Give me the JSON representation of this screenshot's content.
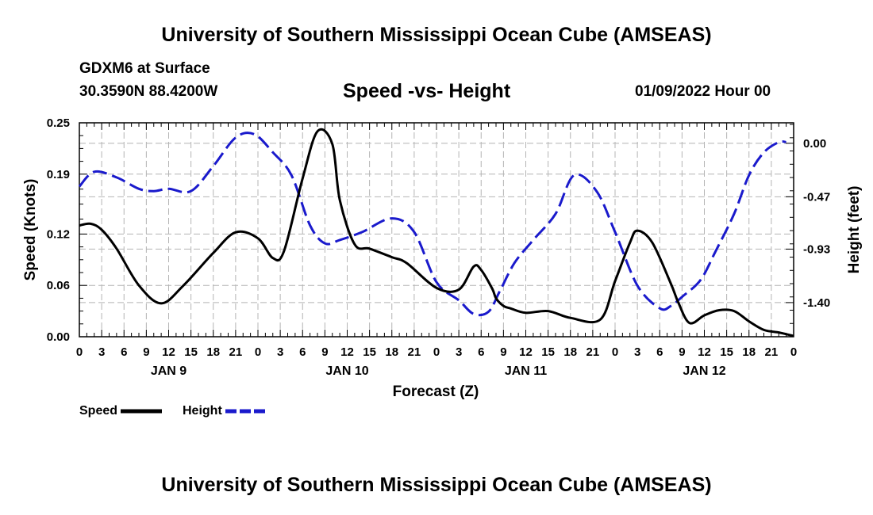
{
  "page": {
    "title": "University of Southern Mississippi Ocean Cube (AMSEAS)",
    "footer_title": "University of Southern Mississippi Ocean Cube (AMSEAS)",
    "station": "GDXM6 at Surface",
    "coords": "30.3590N  88.4200W",
    "subtitle": "Speed -vs- Height",
    "datetime": "01/09/2022 Hour 00"
  },
  "chart_data": {
    "type": "line",
    "title": "Speed -vs- Height",
    "xlabel": "Forecast (Z)",
    "ylabel": "Speed (Knots)",
    "y2label": "Height (feet)",
    "x_range_hours": [
      0,
      96
    ],
    "x_tick_labels": [
      "0",
      "3",
      "6",
      "9",
      "12",
      "15",
      "18",
      "21",
      "0",
      "3",
      "6",
      "9",
      "12",
      "15",
      "18",
      "21",
      "0",
      "3",
      "6",
      "9",
      "12",
      "15",
      "18",
      "21",
      "0",
      "3",
      "6",
      "9",
      "12",
      "15",
      "18",
      "21",
      "0"
    ],
    "day_labels": [
      {
        "label": "JAN 9",
        "hour": 12
      },
      {
        "label": "JAN 10",
        "hour": 36
      },
      {
        "label": "JAN 11",
        "hour": 60
      },
      {
        "label": "JAN 12",
        "hour": 84
      }
    ],
    "y_ticks": [
      "0.00",
      "0.06",
      "0.12",
      "0.19",
      "0.25"
    ],
    "y_range": [
      0,
      0.25
    ],
    "y2_ticks": [
      "-1.40",
      "-0.93",
      "-0.47",
      "0.00"
    ],
    "y2_range": [
      -1.7,
      0.18
    ],
    "grid": true,
    "series": [
      {
        "name": "Speed",
        "axis": "left",
        "color": "#000000",
        "dash": "solid",
        "x": [
          0,
          1.5,
          3,
          5,
          8,
          11,
          14,
          18,
          21,
          24,
          26,
          27.5,
          30,
          32,
          34,
          35,
          37,
          39,
          42,
          44,
          48,
          51,
          53,
          54,
          55.5,
          56,
          57,
          58,
          60,
          63,
          66,
          70,
          72,
          74,
          75,
          77,
          79.5,
          80.5,
          82,
          84,
          86,
          88,
          90,
          92,
          94,
          95,
          96
        ],
        "y": [
          0.13,
          0.132,
          0.125,
          0.103,
          0.06,
          0.039,
          0.06,
          0.098,
          0.122,
          0.115,
          0.092,
          0.1,
          0.185,
          0.24,
          0.225,
          0.16,
          0.108,
          0.103,
          0.093,
          0.086,
          0.057,
          0.055,
          0.082,
          0.078,
          0.056,
          0.045,
          0.036,
          0.033,
          0.028,
          0.03,
          0.022,
          0.02,
          0.065,
          0.11,
          0.124,
          0.11,
          0.062,
          0.04,
          0.016,
          0.025,
          0.031,
          0.03,
          0.018,
          0.008,
          0.005,
          0.003,
          0.001
        ]
      },
      {
        "name": "Height",
        "axis": "right",
        "color": "#1a1acc",
        "dash": "dashed",
        "x": [
          0,
          2,
          5,
          8,
          10,
          12,
          15,
          18,
          21,
          23.5,
          26,
          28.5,
          31,
          33,
          35,
          38,
          42,
          45,
          48,
          51,
          53,
          55,
          56.5,
          58.5,
          61,
          64,
          66.5,
          69.5,
          72,
          75,
          78,
          79.5,
          81,
          83.5,
          85.5,
          88,
          90,
          92,
          94,
          95
        ],
        "y": [
          -0.38,
          -0.25,
          -0.3,
          -0.4,
          -0.42,
          -0.4,
          -0.42,
          -0.2,
          0.05,
          0.08,
          -0.08,
          -0.28,
          -0.72,
          -0.88,
          -0.85,
          -0.78,
          -0.66,
          -0.78,
          -1.22,
          -1.38,
          -1.5,
          -1.48,
          -1.3,
          -1.05,
          -0.85,
          -0.62,
          -0.28,
          -0.42,
          -0.78,
          -1.25,
          -1.45,
          -1.43,
          -1.35,
          -1.2,
          -0.95,
          -0.62,
          -0.28,
          -0.08,
          0.01,
          0.01
        ]
      }
    ],
    "legend": [
      {
        "label": "Speed",
        "color": "#000000",
        "dash": "solid"
      },
      {
        "label": "Height",
        "color": "#1a1acc",
        "dash": "dashed"
      }
    ]
  }
}
